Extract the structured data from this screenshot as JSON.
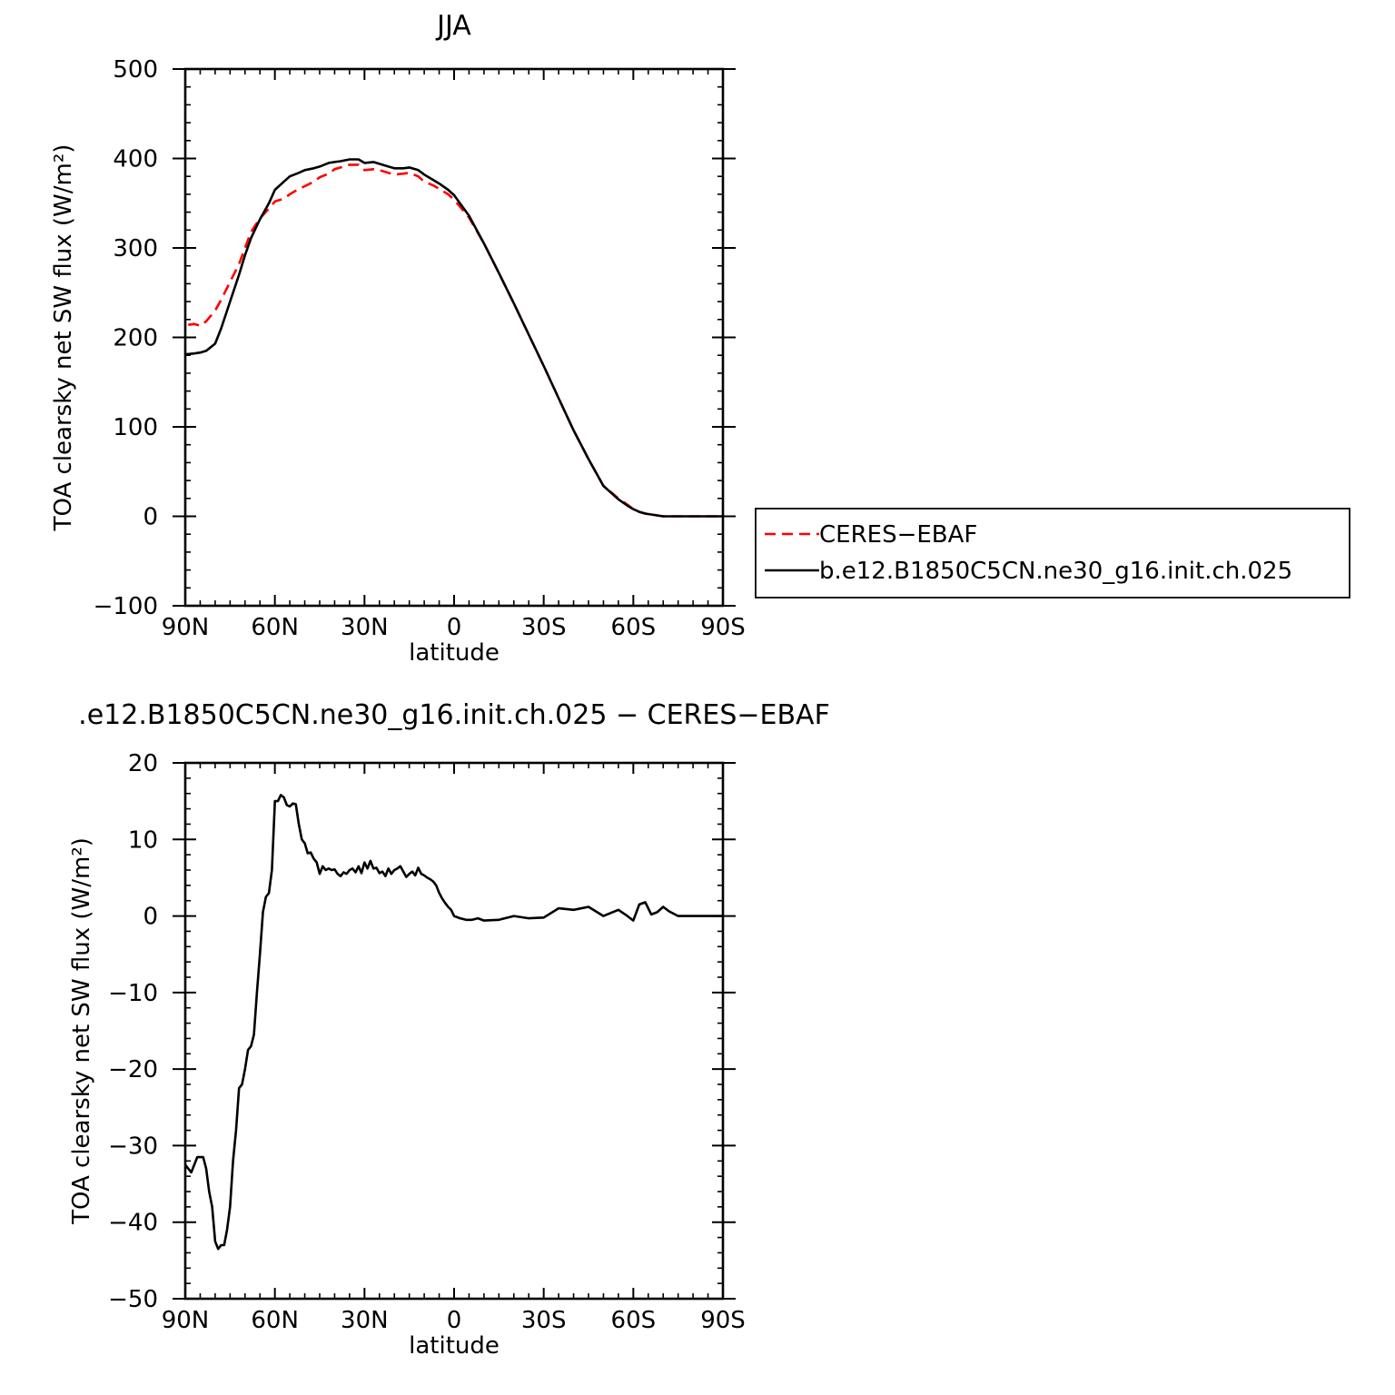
{
  "chart_data": [
    {
      "type": "line",
      "title": "JJA",
      "xlabel": "latitude",
      "ylabel": "TOA clearsky net SW flux (W/m²)",
      "xlim": [
        90,
        -90
      ],
      "ylim": [
        -100,
        500
      ],
      "x_ticks": [
        90,
        60,
        30,
        0,
        -30,
        -60,
        -90
      ],
      "x_tick_labels": [
        "90N",
        "60N",
        "30N",
        "0",
        "30S",
        "60S",
        "90S"
      ],
      "y_ticks": [
        -100,
        0,
        100,
        200,
        300,
        400,
        500
      ],
      "y_tick_labels": [
        "−100",
        "0",
        "100",
        "200",
        "300",
        "400",
        "500"
      ],
      "legend": {
        "position": "right",
        "entries": [
          "CERES−EBAF",
          "b.e12.B1850C5CN.ne30_g16.init.ch.025"
        ]
      },
      "series": [
        {
          "name": "CERES−EBAF",
          "color": "#ff0000",
          "style": "dashed",
          "x": [
            89,
            87,
            85,
            83,
            80,
            78,
            75,
            72,
            70,
            68,
            65,
            62,
            60,
            57,
            55,
            52,
            50,
            47,
            45,
            42,
            40,
            38,
            35,
            32,
            30,
            27,
            25,
            22,
            20,
            17,
            15,
            12,
            10,
            7,
            5,
            2,
            0,
            -5,
            -10,
            -15,
            -20,
            -25,
            -30,
            -35,
            -40,
            -45,
            -50,
            -55,
            -58,
            -60,
            -62,
            -64,
            -66,
            -68,
            -70,
            -72,
            -75,
            -78,
            -80,
            -85,
            -90
          ],
          "y": [
            214,
            215,
            213,
            218,
            230,
            242,
            262,
            282,
            300,
            318,
            333,
            344,
            352,
            355,
            360,
            366,
            369,
            374,
            379,
            383,
            388,
            390,
            393,
            393,
            387,
            388,
            387,
            384,
            382,
            383,
            384,
            380,
            374,
            370,
            366,
            360,
            354,
            334,
            305,
            272,
            238,
            203,
            168,
            132,
            96,
            64,
            34,
            20,
            13,
            8,
            5,
            3,
            2,
            1,
            0,
            0,
            0,
            0,
            0,
            0,
            0
          ]
        },
        {
          "name": "b.e12.B1850C5CN.ne30_g16.init.ch.025",
          "color": "#000000",
          "style": "solid",
          "x": [
            90,
            87,
            85,
            83,
            80,
            78,
            75,
            72,
            70,
            68,
            65,
            62,
            60,
            57,
            55,
            52,
            50,
            47,
            45,
            42,
            40,
            38,
            35,
            32,
            30,
            27,
            25,
            22,
            20,
            17,
            15,
            12,
            10,
            7,
            5,
            2,
            0,
            -5,
            -10,
            -15,
            -20,
            -25,
            -30,
            -35,
            -40,
            -45,
            -50,
            -55,
            -58,
            -60,
            -62,
            -64,
            -66,
            -68,
            -70,
            -72,
            -75,
            -78,
            -80,
            -85,
            -90
          ],
          "y": [
            181,
            182,
            183,
            185,
            193,
            210,
            240,
            270,
            292,
            311,
            332,
            350,
            365,
            374,
            380,
            384,
            387,
            389,
            391,
            395,
            396,
            397,
            399,
            399,
            395,
            396,
            394,
            391,
            389,
            389,
            390,
            387,
            382,
            376,
            372,
            365,
            359,
            336,
            305,
            272,
            238,
            203,
            168,
            132,
            96,
            64,
            34,
            19,
            12,
            8,
            5,
            3,
            2,
            1,
            0,
            0,
            0,
            0,
            0,
            0,
            0
          ]
        }
      ]
    },
    {
      "type": "line",
      "title": ".e12.B1850C5CN.ne30_g16.init.ch.025 − CERES−EBAF",
      "xlabel": "latitude",
      "ylabel": "TOA clearsky net SW flux (W/m²)",
      "xlim": [
        90,
        -90
      ],
      "ylim": [
        -50,
        20
      ],
      "x_ticks": [
        90,
        60,
        30,
        0,
        -30,
        -60,
        -90
      ],
      "x_tick_labels": [
        "90N",
        "60N",
        "30N",
        "0",
        "30S",
        "60S",
        "90S"
      ],
      "y_ticks": [
        -50,
        -40,
        -30,
        -20,
        -10,
        0,
        10,
        20
      ],
      "y_tick_labels": [
        "−50",
        "−40",
        "−30",
        "−20",
        "−10",
        "0",
        "10",
        "20"
      ],
      "series": [
        {
          "color": "#000000",
          "style": "solid",
          "x": [
            90,
            88,
            86,
            84,
            83,
            82,
            81,
            80,
            79,
            78,
            77,
            76,
            75,
            74,
            73,
            72,
            71,
            70,
            69,
            68,
            67,
            66,
            65,
            64,
            63,
            62,
            61,
            60,
            59,
            58,
            57,
            56,
            55,
            54,
            53,
            52,
            51,
            50,
            49,
            48,
            47,
            46,
            45,
            44,
            43,
            42,
            41,
            40,
            39,
            38,
            37,
            36,
            35,
            34,
            33,
            32,
            31,
            30,
            29,
            28,
            27,
            26,
            25,
            24,
            23,
            22,
            21,
            20,
            19,
            18,
            17,
            16,
            15,
            14,
            13,
            12,
            11,
            10,
            9,
            8,
            7,
            6,
            5,
            4,
            3,
            2,
            1,
            0,
            -2,
            -4,
            -6,
            -8,
            -10,
            -15,
            -20,
            -25,
            -30,
            -35,
            -40,
            -45,
            -50,
            -55,
            -58,
            -60,
            -62,
            -64,
            -66,
            -68,
            -70,
            -72,
            -75,
            -78,
            -80,
            -85,
            -90
          ],
          "y": [
            -32.5,
            -33.5,
            -31.5,
            -31.5,
            -33,
            -36,
            -38,
            -42.5,
            -43.5,
            -43,
            -43,
            -41,
            -38,
            -32,
            -28,
            -22.5,
            -22,
            -20,
            -17.5,
            -17,
            -15.5,
            -10,
            -5,
            0.5,
            2.5,
            3,
            6,
            15,
            15,
            15.8,
            15.5,
            14.5,
            14.3,
            14.7,
            14.6,
            12,
            10,
            9.5,
            8.2,
            8.3,
            7.5,
            7,
            5.5,
            6.5,
            6,
            6.2,
            6,
            6.1,
            5.5,
            5.2,
            5.7,
            5.5,
            6,
            6.2,
            5.7,
            6.5,
            5.6,
            7,
            6.2,
            7.2,
            6.2,
            6.3,
            5.6,
            5.8,
            5.2,
            6.2,
            5.5,
            6,
            6.2,
            6.5,
            5.8,
            5.1,
            5.5,
            5.8,
            5.3,
            6.3,
            5.5,
            5.3,
            5,
            4.8,
            4.5,
            4,
            3,
            2.3,
            1.7,
            1.2,
            0.8,
            0,
            -0.3,
            -0.5,
            -0.5,
            -0.3,
            -0.6,
            -0.5,
            0,
            -0.3,
            -0.2,
            1,
            0.8,
            1.2,
            0,
            0.8,
            0,
            -0.6,
            1.5,
            1.8,
            0.2,
            0.5,
            1.2,
            0.6,
            0,
            0,
            0,
            0,
            0
          ]
        }
      ]
    }
  ]
}
